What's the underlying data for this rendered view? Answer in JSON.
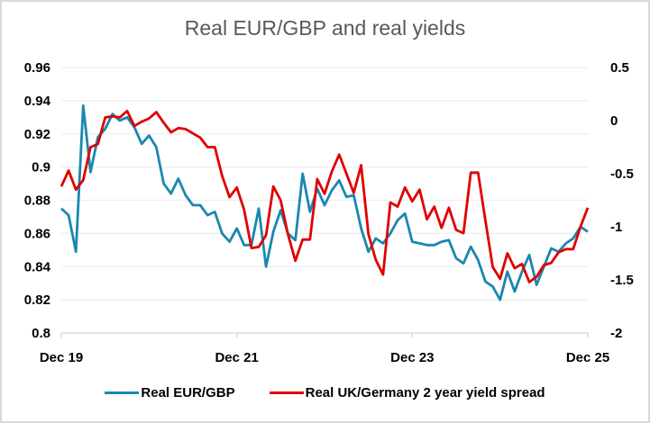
{
  "chart_data": {
    "type": "line",
    "title": "Real EUR/GBP and real yields",
    "xlabel": "",
    "ylabel": "",
    "x_tick_labels": [
      "Dec 19",
      "Dec 21",
      "Dec 23",
      "Dec 25"
    ],
    "x_tick_month_index": [
      0,
      24,
      48,
      72
    ],
    "x_range_months": [
      0,
      72
    ],
    "x_start": "Dec 19",
    "x_frequency": "monthly",
    "y_left": {
      "ylim": [
        0.8,
        0.96
      ],
      "ticks": [
        0.8,
        0.82,
        0.84,
        0.86,
        0.88,
        0.9,
        0.92,
        0.94,
        0.96
      ],
      "tick_labels": [
        "0.8",
        "0.82",
        "0.84",
        "0.86",
        "0.88",
        "0.9",
        "0.92",
        "0.94",
        "0.96"
      ]
    },
    "y_right": {
      "ylim": [
        -2,
        0.5
      ],
      "ticks": [
        -2,
        -1.5,
        -1,
        -0.5,
        0,
        0.5
      ],
      "tick_labels": [
        "-2",
        "-1.5",
        "-1",
        "-0.5",
        "0",
        "0.5"
      ]
    },
    "grid": true,
    "legend_position": "bottom",
    "series": [
      {
        "name": "Real EUR/GBP",
        "axis": "left",
        "color": "#1b87b0",
        "values": [
          0.875,
          0.871,
          0.849,
          0.937,
          0.897,
          0.918,
          0.923,
          0.932,
          0.928,
          0.93,
          0.924,
          0.914,
          0.919,
          0.912,
          0.89,
          0.884,
          0.893,
          0.883,
          0.877,
          0.877,
          0.871,
          0.873,
          0.86,
          0.855,
          0.863,
          0.853,
          0.853,
          0.875,
          0.84,
          0.861,
          0.874,
          0.86,
          0.856,
          0.896,
          0.873,
          0.887,
          0.877,
          0.886,
          0.892,
          0.882,
          0.883,
          0.863,
          0.849,
          0.857,
          0.854,
          0.86,
          0.868,
          0.872,
          0.855,
          0.854,
          0.853,
          0.853,
          0.855,
          0.856,
          0.845,
          0.842,
          0.852,
          0.844,
          0.831,
          0.828,
          0.82,
          0.837,
          0.825,
          0.837,
          0.847,
          0.829,
          0.84,
          0.851,
          0.849,
          0.854,
          0.857,
          0.864,
          0.861
        ]
      },
      {
        "name": "Real UK/Germany 2 year yield spread",
        "axis": "right",
        "color": "#e00000",
        "values": [
          -0.62,
          -0.47,
          -0.65,
          -0.56,
          -0.25,
          -0.22,
          0.03,
          0.04,
          0.03,
          0.09,
          -0.05,
          -0.01,
          0.02,
          0.08,
          -0.02,
          -0.11,
          -0.07,
          -0.08,
          -0.12,
          -0.16,
          -0.25,
          -0.25,
          -0.52,
          -0.72,
          -0.63,
          -0.84,
          -1.2,
          -1.19,
          -1.08,
          -0.62,
          -0.75,
          -1.07,
          -1.32,
          -1.12,
          -1.12,
          -0.55,
          -0.69,
          -0.48,
          -0.32,
          -0.5,
          -0.68,
          -0.42,
          -1.07,
          -1.31,
          -1.45,
          -0.77,
          -0.81,
          -0.63,
          -0.76,
          -0.65,
          -0.93,
          -0.81,
          -1.01,
          -0.82,
          -1.03,
          -1.06,
          -0.49,
          -0.49,
          -0.94,
          -1.38,
          -1.49,
          -1.25,
          -1.39,
          -1.35,
          -1.52,
          -1.47,
          -1.36,
          -1.34,
          -1.24,
          -1.21,
          -1.21,
          -1.0,
          -0.82
        ]
      }
    ]
  },
  "legend": {
    "items": [
      {
        "label": "Real EUR/GBP",
        "color": "#1b87b0"
      },
      {
        "label": "Real UK/Germany 2 year yield spread",
        "color": "#e00000"
      }
    ]
  }
}
